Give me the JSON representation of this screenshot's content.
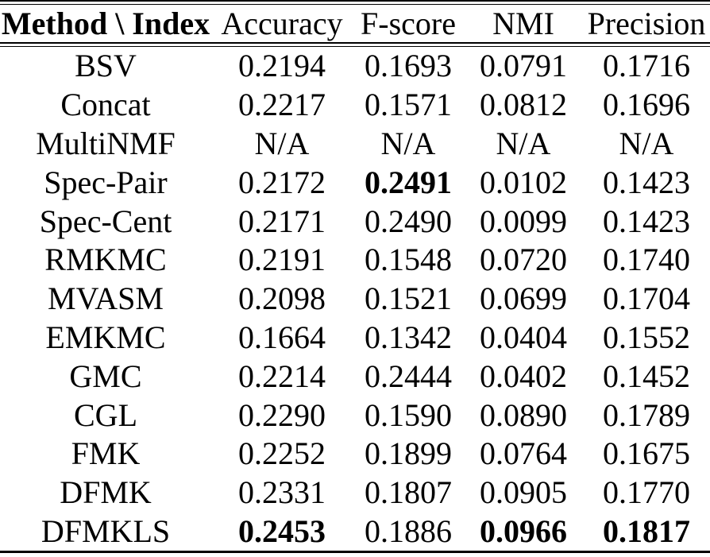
{
  "table": {
    "columns": [
      "Method \\ Index",
      "Accuracy",
      "F-score",
      "NMI",
      "Precision"
    ],
    "rows": [
      {
        "method": "BSV",
        "cells": [
          "0.2194",
          "0.1693",
          "0.0791",
          "0.1716"
        ],
        "bold": [
          false,
          false,
          false,
          false
        ]
      },
      {
        "method": "Concat",
        "cells": [
          "0.2217",
          "0.1571",
          "0.0812",
          "0.1696"
        ],
        "bold": [
          false,
          false,
          false,
          false
        ]
      },
      {
        "method": "MultiNMF",
        "cells": [
          "N/A",
          "N/A",
          "N/A",
          "N/A"
        ],
        "bold": [
          false,
          false,
          false,
          false
        ]
      },
      {
        "method": "Spec-Pair",
        "cells": [
          "0.2172",
          "0.2491",
          "0.0102",
          "0.1423"
        ],
        "bold": [
          false,
          true,
          false,
          false
        ]
      },
      {
        "method": "Spec-Cent",
        "cells": [
          "0.2171",
          "0.2490",
          "0.0099",
          "0.1423"
        ],
        "bold": [
          false,
          false,
          false,
          false
        ]
      },
      {
        "method": "RMKMC",
        "cells": [
          "0.2191",
          "0.1548",
          "0.0720",
          "0.1740"
        ],
        "bold": [
          false,
          false,
          false,
          false
        ]
      },
      {
        "method": "MVASM",
        "cells": [
          "0.2098",
          "0.1521",
          "0.0699",
          "0.1704"
        ],
        "bold": [
          false,
          false,
          false,
          false
        ]
      },
      {
        "method": "EMKMC",
        "cells": [
          "0.1664",
          "0.1342",
          "0.0404",
          "0.1552"
        ],
        "bold": [
          false,
          false,
          false,
          false
        ]
      },
      {
        "method": "GMC",
        "cells": [
          "0.2214",
          "0.2444",
          "0.0402",
          "0.1452"
        ],
        "bold": [
          false,
          false,
          false,
          false
        ]
      },
      {
        "method": "CGL",
        "cells": [
          "0.2290",
          "0.1590",
          "0.0890",
          "0.1789"
        ],
        "bold": [
          false,
          false,
          false,
          false
        ]
      },
      {
        "method": "FMK",
        "cells": [
          "0.2252",
          "0.1899",
          "0.0764",
          "0.1675"
        ],
        "bold": [
          false,
          false,
          false,
          false
        ]
      },
      {
        "method": "DFMK",
        "cells": [
          "0.2331",
          "0.1807",
          "0.0905",
          "0.1770"
        ],
        "bold": [
          false,
          false,
          false,
          false
        ]
      },
      {
        "method": "DFMKLS",
        "cells": [
          "0.2453",
          "0.1886",
          "0.0966",
          "0.1817"
        ],
        "bold": [
          true,
          false,
          true,
          true
        ]
      }
    ]
  }
}
